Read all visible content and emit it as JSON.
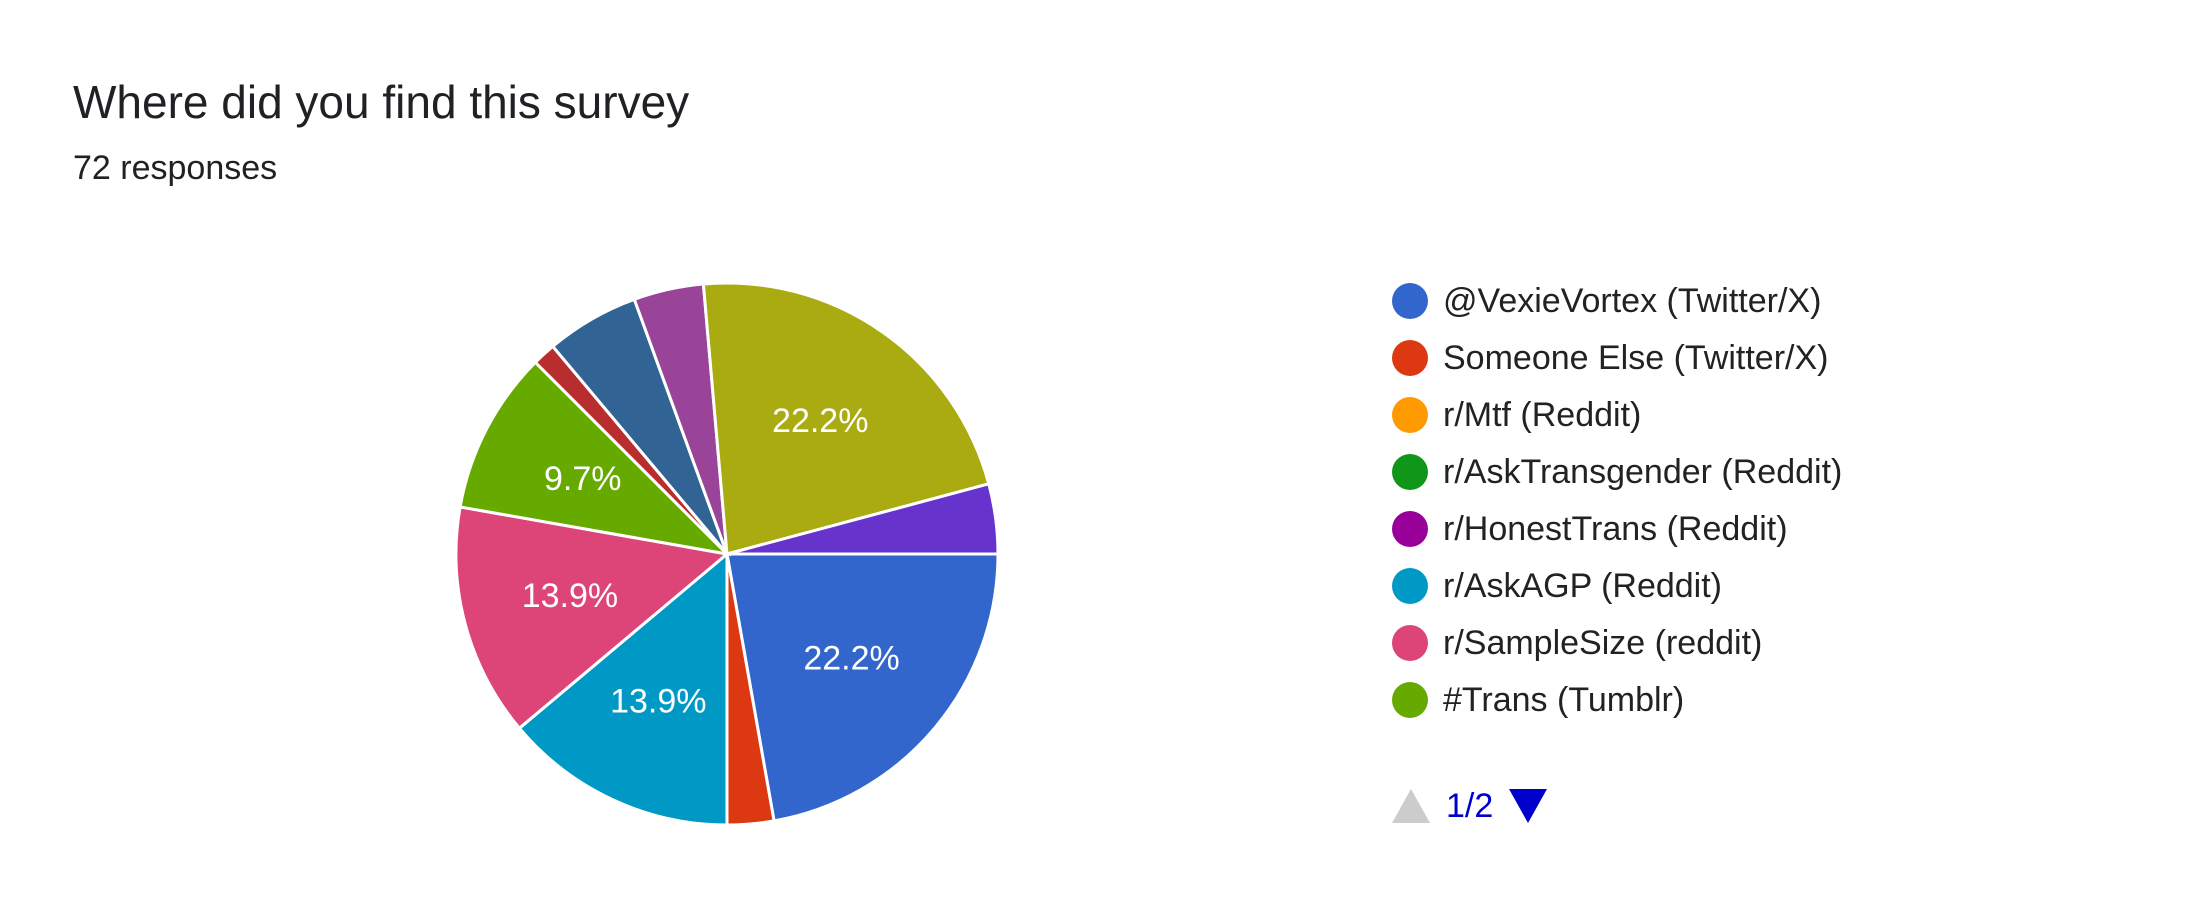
{
  "header": {
    "title": "Where did you find this survey",
    "responses": "72 responses"
  },
  "chart_data": {
    "type": "pie",
    "total": 72,
    "slices": [
      {
        "name": "@VexieVortex (Twitter/X)",
        "count": 16,
        "percent": 22.2,
        "label": "22.2%",
        "color": "#3366cc"
      },
      {
        "name": "Someone Else (Twitter/X)",
        "count": 2,
        "percent": 2.8,
        "label": "",
        "color": "#dc3912"
      },
      {
        "name": "r/AskAGP (Reddit)",
        "count": 10,
        "percent": 13.9,
        "label": "13.9%",
        "color": "#0099c6"
      },
      {
        "name": "r/SampleSize (reddit)",
        "count": 10,
        "percent": 13.9,
        "label": "13.9%",
        "color": "#dd4477"
      },
      {
        "name": "#Trans (Tumblr)",
        "count": 7,
        "percent": 9.7,
        "label": "9.7%",
        "color": "#66aa00"
      },
      {
        "name": "",
        "count": 1,
        "percent": 1.4,
        "label": "",
        "color": "#b82e2e"
      },
      {
        "name": "",
        "count": 4,
        "percent": 5.6,
        "label": "",
        "color": "#316395"
      },
      {
        "name": "",
        "count": 3,
        "percent": 4.2,
        "label": "",
        "color": "#994499"
      },
      {
        "name": "",
        "count": 16,
        "percent": 22.2,
        "label": "22.2%",
        "color": "#aaaa11"
      },
      {
        "name": "",
        "count": 3,
        "percent": 4.2,
        "label": "",
        "color": "#6633cc"
      }
    ]
  },
  "legend": {
    "items": [
      {
        "label": "@VexieVortex (Twitter/X)",
        "color": "#3366cc"
      },
      {
        "label": "Someone Else (Twitter/X)",
        "color": "#dc3912"
      },
      {
        "label": "r/Mtf (Reddit)",
        "color": "#ff9900"
      },
      {
        "label": "r/AskTransgender (Reddit)",
        "color": "#109618"
      },
      {
        "label": "r/HonestTrans (Reddit)",
        "color": "#990099"
      },
      {
        "label": "r/AskAGP (Reddit)",
        "color": "#0099c6"
      },
      {
        "label": "r/SampleSize (reddit)",
        "color": "#dd4477"
      },
      {
        "label": "#Trans (Tumblr)",
        "color": "#66aa00"
      }
    ],
    "page": "1/2"
  }
}
